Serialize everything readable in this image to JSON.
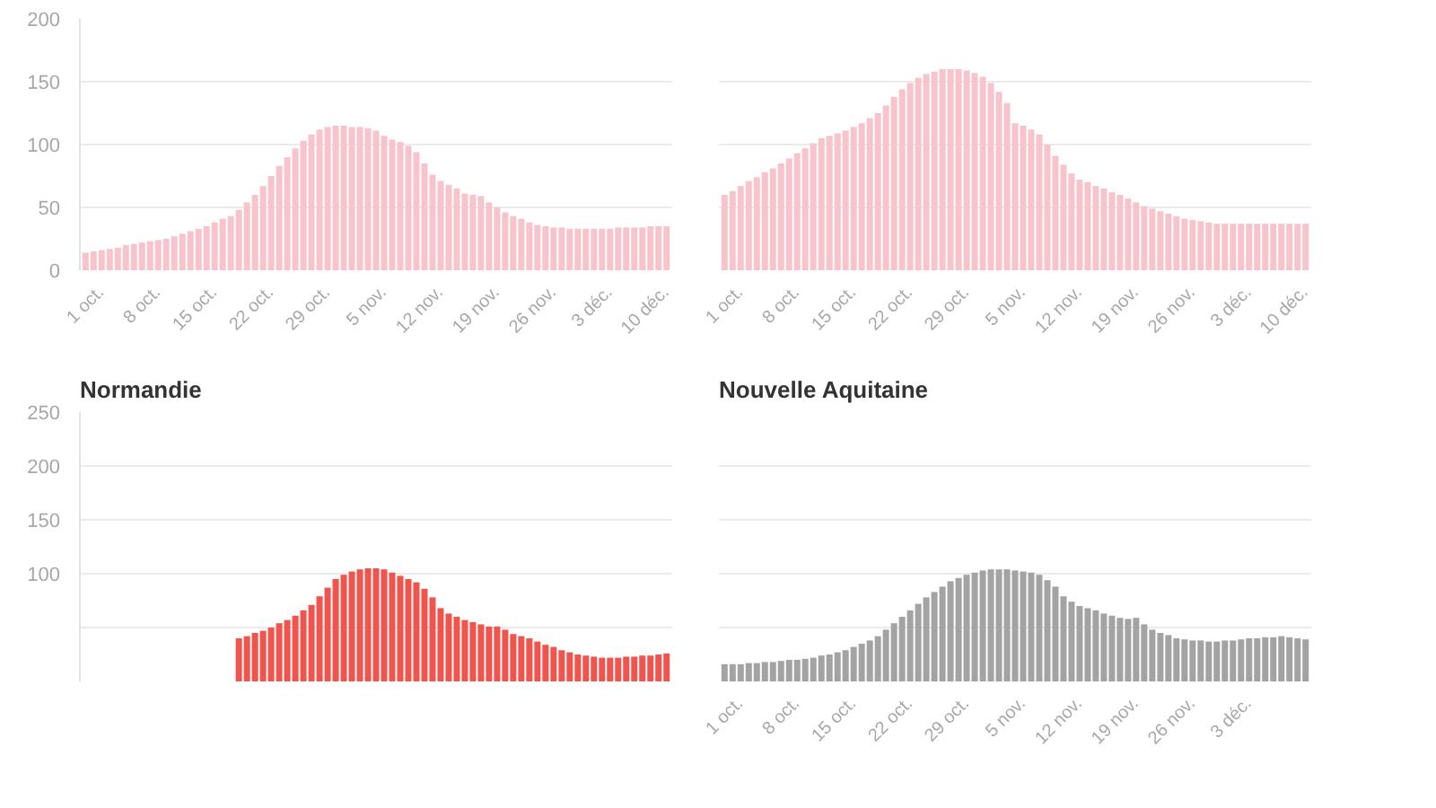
{
  "chart_data": [
    {
      "type": "bar",
      "categories": [
        null,
        null,
        "1 oct.",
        null,
        null,
        null,
        null,
        null,
        null,
        "8 oct.",
        null,
        null,
        null,
        null,
        null,
        null,
        "15 oct.",
        null,
        null,
        null,
        null,
        null,
        null,
        "22 oct.",
        null,
        null,
        null,
        null,
        null,
        null,
        "29 oct.",
        null,
        null,
        null,
        null,
        null,
        null,
        "5 nov.",
        null,
        null,
        null,
        null,
        null,
        null,
        "12 nov.",
        null,
        null,
        null,
        null,
        null,
        null,
        "19 nov.",
        null,
        null,
        null,
        null,
        null,
        null,
        "26 nov.",
        null,
        null,
        null,
        null,
        null,
        null,
        "3 déc.",
        null,
        null,
        null,
        null,
        null,
        null,
        "10 déc."
      ],
      "values": [
        14,
        15,
        16,
        17,
        18,
        20,
        21,
        22,
        23,
        24,
        25,
        27,
        29,
        31,
        33,
        35,
        38,
        41,
        43,
        48,
        54,
        60,
        67,
        75,
        83,
        90,
        97,
        103,
        108,
        112,
        114,
        115,
        115,
        114,
        114,
        113,
        111,
        107,
        104,
        102,
        99,
        94,
        85,
        76,
        71,
        68,
        65,
        61,
        60,
        59,
        54,
        50,
        46,
        43,
        41,
        38,
        36,
        35,
        34,
        34,
        33,
        33,
        33,
        33,
        33,
        33,
        34,
        34,
        34,
        34,
        35,
        35,
        35
      ],
      "color": "#f8c4cc",
      "ylim": [
        0,
        200
      ],
      "yticks": [
        0,
        50,
        100,
        150,
        200
      ],
      "grid": "y"
    },
    {
      "type": "bar",
      "categories": [
        null,
        null,
        "1 oct.",
        null,
        null,
        null,
        null,
        null,
        null,
        "8 oct.",
        null,
        null,
        null,
        null,
        null,
        null,
        "15 oct.",
        null,
        null,
        null,
        null,
        null,
        null,
        "22 oct.",
        null,
        null,
        null,
        null,
        null,
        null,
        "29 oct.",
        null,
        null,
        null,
        null,
        null,
        null,
        "5 nov.",
        null,
        null,
        null,
        null,
        null,
        null,
        "12 nov.",
        null,
        null,
        null,
        null,
        null,
        null,
        "19 nov.",
        null,
        null,
        null,
        null,
        null,
        null,
        "26 nov.",
        null,
        null,
        null,
        null,
        null,
        null,
        "3 déc.",
        null,
        null,
        null,
        null,
        null,
        null,
        "10 déc."
      ],
      "values": [
        60,
        63,
        67,
        71,
        74,
        78,
        81,
        85,
        89,
        93,
        97,
        101,
        105,
        107,
        109,
        111,
        114,
        117,
        121,
        125,
        131,
        138,
        144,
        149,
        153,
        156,
        158,
        160,
        160,
        160,
        159,
        157,
        154,
        149,
        142,
        133,
        117,
        115,
        112,
        108,
        100,
        91,
        84,
        77,
        72,
        70,
        67,
        65,
        62,
        60,
        57,
        54,
        51,
        49,
        47,
        45,
        43,
        41,
        40,
        39,
        38,
        37,
        37,
        37,
        37,
        37,
        37,
        37,
        37,
        37,
        37,
        37,
        37
      ],
      "color": "#f8c4cc",
      "ylim": [
        0,
        200
      ],
      "yticks": [
        0,
        50,
        100,
        150,
        200
      ],
      "grid": "y",
      "tick_labels": "x"
    },
    {
      "type": "bar",
      "title": "Normandie",
      "categories": [
        null,
        null,
        null,
        null,
        null,
        null,
        null,
        null,
        null,
        null,
        null,
        null,
        null,
        null,
        null,
        null,
        null,
        null,
        null,
        null,
        null,
        null,
        null,
        null,
        null,
        null,
        null,
        null,
        null,
        null,
        null,
        null,
        null,
        null,
        null,
        null,
        null,
        null,
        null,
        null,
        null,
        null,
        null,
        null,
        null,
        null,
        null,
        null,
        null,
        null,
        null,
        null,
        null,
        null,
        null,
        null,
        null,
        null,
        null,
        null,
        null,
        null,
        null,
        null,
        null,
        null,
        null,
        null,
        null,
        null,
        null,
        null,
        null
      ],
      "values": [
        null,
        null,
        null,
        null,
        null,
        null,
        null,
        null,
        null,
        null,
        null,
        null,
        null,
        null,
        null,
        null,
        null,
        null,
        null,
        40,
        42,
        45,
        47,
        50,
        54,
        57,
        61,
        66,
        71,
        79,
        87,
        95,
        99,
        102,
        104,
        105,
        105,
        104,
        101,
        98,
        95,
        92,
        86,
        78,
        68,
        63,
        60,
        57,
        55,
        53,
        51,
        51,
        48,
        44,
        42,
        40,
        37,
        34,
        32,
        29,
        27,
        25,
        24,
        23,
        22,
        22,
        22,
        23,
        23,
        24,
        24,
        25,
        26
      ],
      "color": "#f0544c",
      "ylim": [
        0,
        250
      ],
      "yticks": [
        {
          "value": 50,
          "label": null
        },
        100,
        150,
        200,
        250
      ],
      "grid": "y",
      "tick_labels": "y"
    },
    {
      "type": "bar",
      "title": "Nouvelle Aquitaine",
      "categories": [
        null,
        null,
        "1 oct.",
        null,
        null,
        null,
        null,
        null,
        null,
        "8 oct.",
        null,
        null,
        null,
        null,
        null,
        null,
        "15 oct.",
        null,
        null,
        null,
        null,
        null,
        null,
        "22 oct.",
        null,
        null,
        null,
        null,
        null,
        null,
        "29 oct.",
        null,
        null,
        null,
        null,
        null,
        null,
        "5 nov.",
        null,
        null,
        null,
        null,
        null,
        null,
        "12 nov.",
        null,
        null,
        null,
        null,
        null,
        null,
        "19 nov.",
        null,
        null,
        null,
        null,
        null,
        null,
        "26 nov.",
        null,
        null,
        null,
        null,
        null,
        null,
        "3 déc.",
        null,
        null,
        null,
        null,
        null,
        null,
        null
      ],
      "values": [
        16,
        16,
        16,
        17,
        17,
        18,
        18,
        19,
        20,
        20,
        21,
        22,
        24,
        25,
        27,
        29,
        32,
        35,
        38,
        42,
        48,
        54,
        60,
        66,
        72,
        78,
        83,
        88,
        93,
        96,
        99,
        101,
        103,
        104,
        104,
        104,
        103,
        102,
        101,
        99,
        94,
        88,
        79,
        74,
        70,
        68,
        66,
        63,
        61,
        59,
        58,
        59,
        53,
        48,
        45,
        43,
        40,
        39,
        38,
        38,
        37,
        37,
        38,
        38,
        39,
        40,
        40,
        41,
        41,
        42,
        41,
        40,
        39
      ],
      "color": "#a3a3a3",
      "ylim": [
        0,
        250
      ],
      "yticks": [
        {
          "value": 50,
          "label": null
        },
        100,
        150,
        200,
        250
      ],
      "grid": "y",
      "tick_labels": "x"
    }
  ]
}
